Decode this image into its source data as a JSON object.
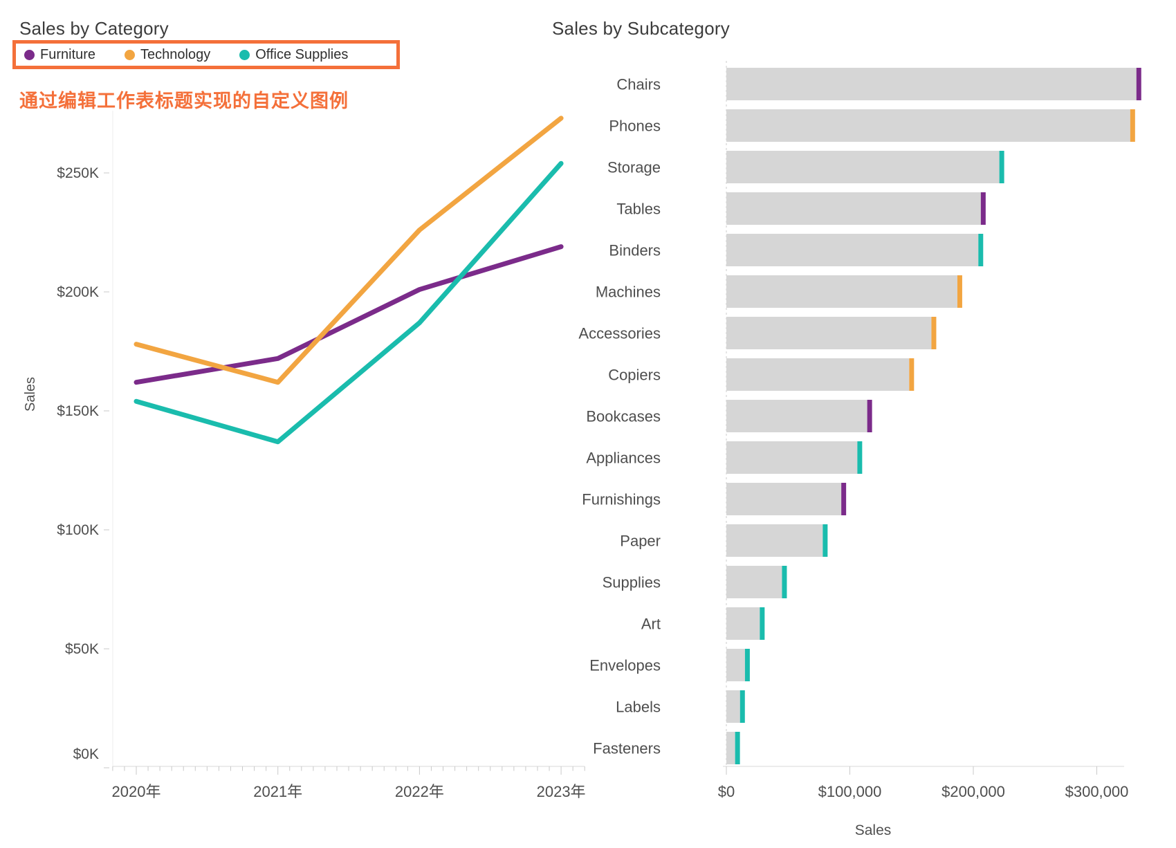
{
  "palette": {
    "Furniture": "#7b2b8a",
    "Technology": "#f2a541",
    "Office Supplies": "#1abcad"
  },
  "left_chart": {
    "title": "Sales by Category",
    "legend_box_color": "#f4703a",
    "legend_items": [
      {
        "label": "Furniture",
        "color": "#7b2b8a"
      },
      {
        "label": "Technology",
        "color": "#f2a541"
      },
      {
        "label": "Office Supplies",
        "color": "#1abcad"
      }
    ],
    "annotation": "通过编辑工作表标题实现的自定义图例",
    "annotation_color": "#f4703a"
  },
  "right_chart": {
    "title": "Sales by Subcategory"
  },
  "chart_data": [
    {
      "type": "line",
      "title": "Sales by Category",
      "x": [
        "2020年",
        "2021年",
        "2022年",
        "2023年"
      ],
      "series": [
        {
          "name": "Furniture",
          "color": "#7b2b8a",
          "values": [
            162000,
            172000,
            201000,
            219000
          ]
        },
        {
          "name": "Technology",
          "color": "#f2a541",
          "values": [
            178000,
            162000,
            226000,
            273000
          ]
        },
        {
          "name": "Office Supplies",
          "color": "#1abcad",
          "values": [
            154000,
            137000,
            187000,
            254000
          ]
        }
      ],
      "ylabel": "Sales",
      "ylim": [
        0,
        285000
      ],
      "grid": false,
      "legend_position": "custom legend rendered as worksheet title (top-left)",
      "y_ticks": [
        {
          "value": 0,
          "label": "$0K"
        },
        {
          "value": 50000,
          "label": "$50K"
        },
        {
          "value": 100000,
          "label": "$100K"
        },
        {
          "value": 150000,
          "label": "$150K"
        },
        {
          "value": 200000,
          "label": "$200K"
        },
        {
          "value": 250000,
          "label": "$250K"
        }
      ]
    },
    {
      "type": "bar",
      "title": "Sales by Subcategory",
      "orientation": "horizontal",
      "xlabel": "Sales",
      "xlim": [
        0,
        360000
      ],
      "grid": false,
      "bar_color": "#d6d6d6",
      "x_ticks": [
        {
          "value": 0,
          "label": "$0"
        },
        {
          "value": 100000,
          "label": "$100,000"
        },
        {
          "value": 200000,
          "label": "$200,000"
        },
        {
          "value": 300000,
          "label": "$300,000"
        }
      ],
      "rows": [
        {
          "category": "Chairs",
          "value": 336000,
          "group": "Furniture"
        },
        {
          "category": "Phones",
          "value": 331000,
          "group": "Technology"
        },
        {
          "category": "Storage",
          "value": 225000,
          "group": "Office Supplies"
        },
        {
          "category": "Tables",
          "value": 210000,
          "group": "Furniture"
        },
        {
          "category": "Binders",
          "value": 208000,
          "group": "Office Supplies"
        },
        {
          "category": "Machines",
          "value": 191000,
          "group": "Technology"
        },
        {
          "category": "Accessories",
          "value": 170000,
          "group": "Technology"
        },
        {
          "category": "Copiers",
          "value": 152000,
          "group": "Technology"
        },
        {
          "category": "Bookcases",
          "value": 118000,
          "group": "Furniture"
        },
        {
          "category": "Appliances",
          "value": 110000,
          "group": "Office Supplies"
        },
        {
          "category": "Furnishings",
          "value": 97000,
          "group": "Furniture"
        },
        {
          "category": "Paper",
          "value": 82000,
          "group": "Office Supplies"
        },
        {
          "category": "Supplies",
          "value": 49000,
          "group": "Office Supplies"
        },
        {
          "category": "Art",
          "value": 31000,
          "group": "Office Supplies"
        },
        {
          "category": "Envelopes",
          "value": 19000,
          "group": "Office Supplies"
        },
        {
          "category": "Labels",
          "value": 15000,
          "group": "Office Supplies"
        },
        {
          "category": "Fasteners",
          "value": 11000,
          "group": "Office Supplies"
        }
      ]
    }
  ]
}
